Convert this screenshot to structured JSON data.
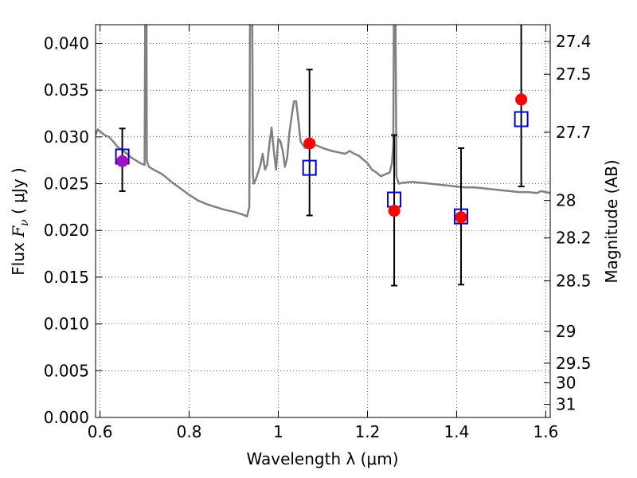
{
  "chart_data": {
    "type": "scatter",
    "xlabel": "Wavelength  λ (μm)",
    "ylabel": "Flux  F_ν  ( μJy )",
    "y2label": "Magnitude (AB)",
    "xlim": [
      0.59,
      1.61
    ],
    "ylim": [
      0.0,
      0.042
    ],
    "grid": true,
    "xticks": [
      0.6,
      0.8,
      1.0,
      1.2,
      1.4,
      1.6
    ],
    "xtick_labels": [
      "0.6",
      "0.8",
      "1",
      "1.2",
      "1.4",
      "1.6"
    ],
    "yticks": [
      0.0,
      0.005,
      0.01,
      0.015,
      0.02,
      0.025,
      0.03,
      0.035,
      0.04
    ],
    "ytick_labels": [
      "0.000",
      "0.005",
      "0.010",
      "0.015",
      "0.020",
      "0.025",
      "0.030",
      "0.035",
      "0.040"
    ],
    "y2ticks": [
      {
        "flux": 0.0402,
        "label": "27.4"
      },
      {
        "flux": 0.0367,
        "label": "27.5"
      },
      {
        "flux": 0.0305,
        "label": "27.7"
      },
      {
        "flux": 0.0232,
        "label": "28"
      },
      {
        "flux": 0.0192,
        "label": "28.2"
      },
      {
        "flux": 0.0146,
        "label": "28.5"
      },
      {
        "flux": 0.0092,
        "label": "29"
      },
      {
        "flux": 0.0058,
        "label": "29.5"
      },
      {
        "flux": 0.0037,
        "label": "30"
      },
      {
        "flux": 0.0014,
        "label": "31"
      }
    ],
    "observed": {
      "marker": "red-filled-circle",
      "color": "#ff0000",
      "points": [
        {
          "x": 0.65,
          "y": 0.0274,
          "yerr_low": 0.0242,
          "yerr_high": 0.0309
        },
        {
          "x": 1.07,
          "y": 0.0293,
          "yerr_low": 0.0216,
          "yerr_high": 0.0372
        },
        {
          "x": 1.26,
          "y": 0.0221,
          "yerr_low": 0.0141,
          "yerr_high": 0.0302
        },
        {
          "x": 1.41,
          "y": 0.0214,
          "yerr_low": 0.0142,
          "yerr_high": 0.0288
        },
        {
          "x": 1.545,
          "y": 0.034,
          "yerr_low": 0.0247,
          "yerr_high": 0.0425
        }
      ]
    },
    "model_points": {
      "marker": "blue-open-square",
      "color": "#0000cc",
      "points": [
        {
          "x": 0.65,
          "y": 0.0279
        },
        {
          "x": 1.07,
          "y": 0.0267
        },
        {
          "x": 1.26,
          "y": 0.0233
        },
        {
          "x": 1.41,
          "y": 0.0215
        },
        {
          "x": 1.545,
          "y": 0.0319
        }
      ]
    },
    "spectrum": {
      "color": "#808080",
      "x": [
        0.59,
        0.595,
        0.6,
        0.61,
        0.62,
        0.63,
        0.64,
        0.65,
        0.66,
        0.67,
        0.68,
        0.69,
        0.7,
        0.702,
        0.704,
        0.705,
        0.706,
        0.708,
        0.71,
        0.72,
        0.74,
        0.76,
        0.78,
        0.8,
        0.82,
        0.84,
        0.86,
        0.88,
        0.9,
        0.92,
        0.93,
        0.935,
        0.937,
        0.939,
        0.941,
        0.943,
        0.945,
        0.95,
        0.96,
        0.965,
        0.97,
        0.975,
        0.98,
        0.985,
        0.99,
        0.995,
        1.0,
        1.005,
        1.01,
        1.015,
        1.02,
        1.025,
        1.03,
        1.035,
        1.04,
        1.045,
        1.05,
        1.06,
        1.08,
        1.1,
        1.12,
        1.14,
        1.15,
        1.16,
        1.17,
        1.18,
        1.19,
        1.2,
        1.21,
        1.22,
        1.23,
        1.24,
        1.25,
        1.255,
        1.258,
        1.26,
        1.262,
        1.265,
        1.27,
        1.28,
        1.3,
        1.32,
        1.34,
        1.36,
        1.38,
        1.4,
        1.42,
        1.44,
        1.46,
        1.48,
        1.5,
        1.52,
        1.54,
        1.56,
        1.58,
        1.59,
        1.6,
        1.61
      ],
      "y": [
        0.0302,
        0.0308,
        0.0306,
        0.0302,
        0.03,
        0.0295,
        0.0289,
        0.0286,
        0.0282,
        0.0278,
        0.0275,
        0.0272,
        0.027,
        0.05,
        0.05,
        0.0275,
        0.0273,
        0.027,
        0.0268,
        0.0265,
        0.026,
        0.0252,
        0.0245,
        0.0238,
        0.0232,
        0.0228,
        0.0225,
        0.0222,
        0.022,
        0.0217,
        0.0215,
        0.0225,
        0.05,
        0.05,
        0.05,
        0.026,
        0.025,
        0.0255,
        0.027,
        0.0282,
        0.0265,
        0.027,
        0.0292,
        0.031,
        0.0285,
        0.0265,
        0.0298,
        0.0295,
        0.0285,
        0.0268,
        0.0278,
        0.0305,
        0.0322,
        0.0338,
        0.0338,
        0.0318,
        0.0295,
        0.0288,
        0.0292,
        0.0288,
        0.0285,
        0.0283,
        0.0282,
        0.0285,
        0.0282,
        0.028,
        0.0276,
        0.0272,
        0.0265,
        0.0262,
        0.0258,
        0.026,
        0.0262,
        0.0272,
        0.0292,
        0.05,
        0.05,
        0.0258,
        0.025,
        0.0251,
        0.0252,
        0.0251,
        0.025,
        0.0249,
        0.0248,
        0.0247,
        0.0246,
        0.0246,
        0.0245,
        0.0244,
        0.0243,
        0.0242,
        0.0241,
        0.0241,
        0.024,
        0.0242,
        0.0241,
        0.024
      ]
    }
  }
}
